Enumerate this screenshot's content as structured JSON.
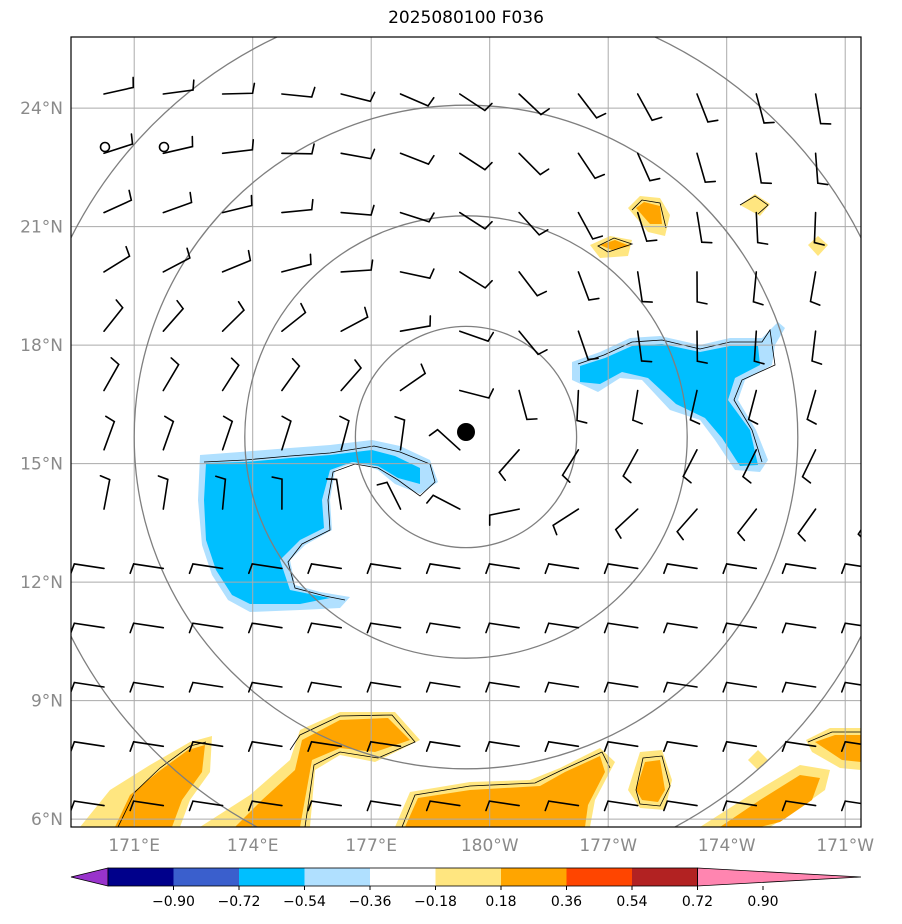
{
  "title": "2025080100 F036",
  "axes": {
    "lat_labels": [
      "24°N",
      "21°N",
      "18°N",
      "15°N",
      "12°N",
      "9°N",
      "6°N"
    ],
    "lat_values": [
      24,
      21,
      18,
      15,
      12,
      9,
      6
    ],
    "lon_labels": [
      "171°E",
      "174°E",
      "177°E",
      "180°W",
      "177°W",
      "174°W",
      "171°W"
    ],
    "lon_values": [
      171,
      174,
      177,
      180,
      183,
      186,
      189
    ],
    "lat_range": [
      5.8,
      25.8
    ],
    "lon_range": [
      169.4,
      189.4
    ],
    "grid": true
  },
  "center_marker": {
    "lon": 179.4,
    "lat": 15.8
  },
  "range_rings_deg": [
    2.8,
    5.6,
    8.4,
    11.2
  ],
  "colorbar": {
    "ticks": [
      "−0.90",
      "−0.72",
      "−0.54",
      "−0.36",
      "−0.18",
      "0.18",
      "0.36",
      "0.54",
      "0.72",
      "0.90"
    ],
    "colors": [
      "#9933cc",
      "#00008b",
      "#3a5fcd",
      "#00bfff",
      "#b0e0ff",
      "#ffffff",
      "#ffe680",
      "#ffa500",
      "#ff4500",
      "#b22222",
      "#ff85b0"
    ]
  },
  "shading": {
    "blue_core": "#00bfff",
    "blue_edge": "#b0e0ff",
    "orange_core": "#ffa500",
    "orange_edge": "#ffe680"
  }
}
